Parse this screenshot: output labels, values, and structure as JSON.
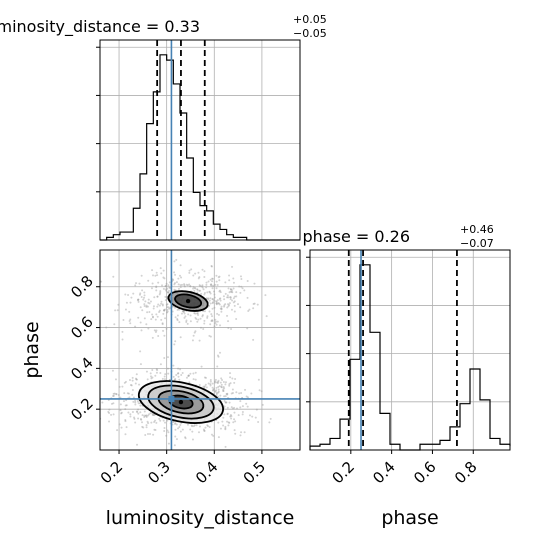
{
  "chart_data": [
    {
      "panel": "luminosity_distance marginal",
      "type": "histogram",
      "title_param": "luminosity_distance",
      "title_equals": " = ",
      "title_value": "0.33",
      "title_upper": "+0.05",
      "title_lower": "−0.05",
      "xlim": [
        0.16,
        0.58
      ],
      "bins_start": 0.16,
      "bin_width": 0.014,
      "counts": [
        0,
        1,
        2,
        3,
        3,
        12,
        25,
        44,
        56,
        70,
        68,
        59,
        48,
        31,
        18,
        13,
        11,
        6,
        4,
        2,
        1,
        1,
        0,
        0,
        0,
        0,
        0,
        0,
        0,
        0
      ],
      "quantile_lines": [
        0.28,
        0.33,
        0.38
      ],
      "truth": 0.31,
      "grid": true
    },
    {
      "panel": "phase vs luminosity_distance",
      "type": "scatter+contour",
      "xlabel": "luminosity_distance",
      "ylabel": "phase",
      "xlim": [
        0.16,
        0.58
      ],
      "ylim": [
        0.0,
        0.98
      ],
      "xticks": [
        "0.2",
        "0.3",
        "0.4",
        "0.5"
      ],
      "yticks": [
        "0.2",
        "0.4",
        "0.6",
        "0.8"
      ],
      "truth": {
        "x": 0.31,
        "y": 0.25
      },
      "modes": [
        {
          "cx": 0.345,
          "cy": 0.73,
          "sx": 0.045,
          "sy": 0.055,
          "weight": 0.38
        },
        {
          "cx": 0.33,
          "cy": 0.235,
          "sx": 0.05,
          "sy": 0.055,
          "weight": 0.62
        }
      ],
      "contours": [
        {
          "mode": 0,
          "levels": [
            {
              "rx": 0.042,
              "ry": 0.045
            },
            {
              "rx": 0.028,
              "ry": 0.03
            }
          ]
        },
        {
          "mode": 1,
          "levels": [
            {
              "rx": 0.09,
              "ry": 0.095
            },
            {
              "rx": 0.07,
              "ry": 0.075
            },
            {
              "rx": 0.048,
              "ry": 0.052
            },
            {
              "rx": 0.025,
              "ry": 0.03
            }
          ]
        }
      ],
      "grid": true
    },
    {
      "panel": "phase marginal",
      "type": "histogram",
      "title_param": "phase",
      "title_equals": " = ",
      "title_value": "0.26",
      "title_upper": "+0.46",
      "title_lower": "−0.07",
      "xlabel": "phase",
      "xlim": [
        0.0,
        0.98
      ],
      "xticks": [
        "0.2",
        "0.4",
        "0.6",
        "0.8"
      ],
      "bins_start": 0.0,
      "bin_width": 0.049,
      "counts": [
        2,
        3,
        6,
        16,
        47,
        96,
        61,
        19,
        3,
        0,
        0,
        3,
        3,
        5,
        12,
        24,
        42,
        26,
        6,
        3,
        2
      ],
      "quantile_lines": [
        0.19,
        0.26,
        0.72
      ],
      "truth": 0.25,
      "grid": true
    }
  ],
  "colors": {
    "truth": "#4682b4",
    "lines": "#000000",
    "grid": "#b0b0b0",
    "points": "#9e9e9e"
  }
}
